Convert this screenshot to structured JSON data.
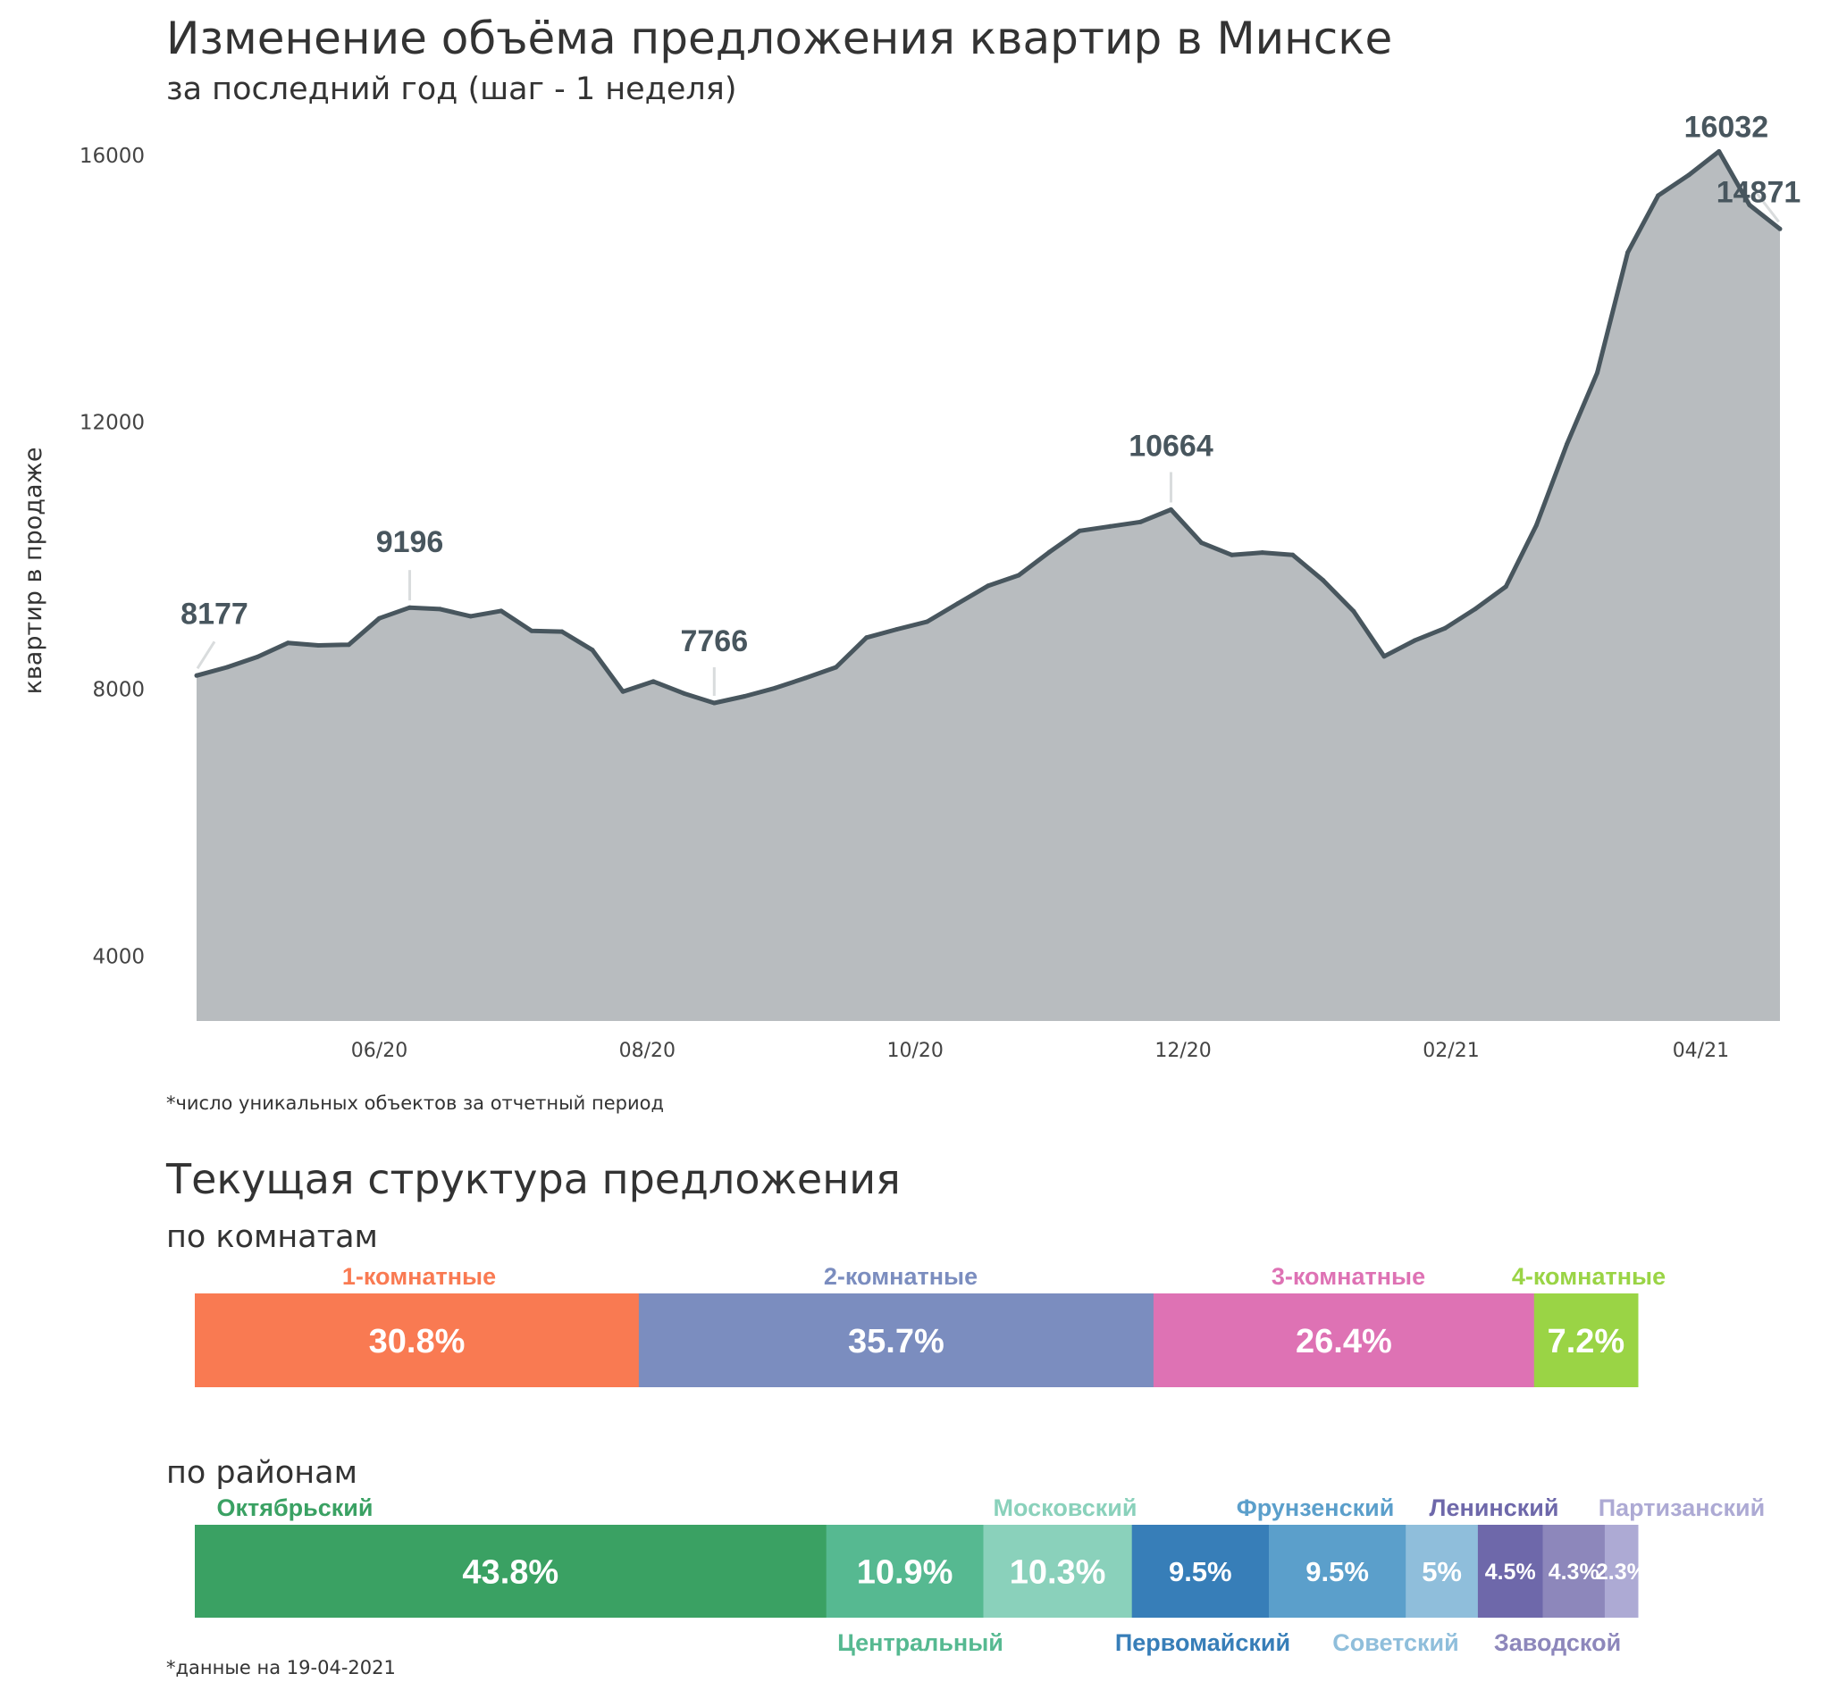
{
  "chart_data": [
    {
      "type": "area",
      "title": "Изменение объёма предложения квартир в Минске",
      "subtitle": "за последний год (шаг - 1 неделя)",
      "xlabel": "",
      "ylabel": "квартир в продаже",
      "ylim": [
        3000,
        16200
      ],
      "grid": false,
      "yticks": [
        {
          "value": 4000,
          "label": "4000"
        },
        {
          "value": 8000,
          "label": "8000"
        },
        {
          "value": 12000,
          "label": "12000"
        },
        {
          "value": 16000,
          "label": "16000"
        }
      ],
      "xticks": [
        {
          "week": 6,
          "label": "06/20"
        },
        {
          "week": 14.8,
          "label": "08/20"
        },
        {
          "week": 23.6,
          "label": "10/20"
        },
        {
          "week": 32.4,
          "label": "12/20"
        },
        {
          "week": 41.2,
          "label": "02/21"
        },
        {
          "week": 49.4,
          "label": "04/21"
        }
      ],
      "values": [
        8177,
        8301,
        8457,
        8666,
        8630,
        8640,
        9035,
        9196,
        9173,
        9066,
        9146,
        8848,
        8835,
        8560,
        7937,
        8088,
        7910,
        7766,
        7866,
        7990,
        8141,
        8301,
        8746,
        8870,
        8986,
        9257,
        9524,
        9680,
        10026,
        10346,
        10413,
        10480,
        10664,
        10168,
        9984,
        10020,
        9984,
        9604,
        9140,
        8465,
        8702,
        8886,
        9177,
        9510,
        10430,
        11643,
        12714,
        14517,
        15371,
        15676,
        16032,
        15230,
        14871
      ],
      "annotations": [
        {
          "week": 0,
          "value": 8177,
          "label": "8177"
        },
        {
          "week": 7,
          "value": 9196,
          "label": "9196"
        },
        {
          "week": 17,
          "value": 7766,
          "label": "7766"
        },
        {
          "week": 32,
          "value": 10664,
          "label": "10664"
        },
        {
          "week": 50,
          "value": 16032,
          "label": "16032"
        },
        {
          "week": 52,
          "value": 14871,
          "label": "14871"
        }
      ],
      "footnote": "*число уникальных объектов за отчетный период",
      "colors": {
        "area": "#B8BCBF",
        "line": "#48565E",
        "leader": "#D9DCDD"
      }
    },
    {
      "type": "bar",
      "stacked": true,
      "title": "Текущая структура предложения",
      "subtitle": "по комнатам",
      "unit": "%",
      "categories": [
        "1-комнатные",
        "2-комнатные",
        "3-комнатные",
        "4-комнатные"
      ],
      "values": [
        30.8,
        35.7,
        26.4,
        7.2
      ],
      "labels": [
        "30.8%",
        "35.7%",
        "26.4%",
        "7.2%"
      ],
      "colors": [
        "#F97A52",
        "#7B8DBF",
        "#DE72B4",
        "#9AD445"
      ]
    },
    {
      "type": "bar",
      "stacked": true,
      "subtitle": "по районам",
      "unit": "%",
      "categories": [
        "Октябрьский",
        "Центральный",
        "Московский",
        "Первомайский",
        "Фрунзенский",
        "Советский",
        "Ленинский",
        "Заводской",
        "Партизанский"
      ],
      "values": [
        43.8,
        10.9,
        10.3,
        9.5,
        9.5,
        5,
        4.5,
        4.3,
        2.3
      ],
      "labels": [
        "43.8%",
        "10.9%",
        "10.3%",
        "9.5%",
        "9.5%",
        "5%",
        "4.5%",
        "4.3%",
        "2.3%"
      ],
      "label_side": [
        "top",
        "bottom",
        "top",
        "bottom",
        "top",
        "bottom",
        "top",
        "bottom",
        "top"
      ],
      "colors": [
        "#3AA163",
        "#56B991",
        "#8AD1BB",
        "#377EB8",
        "#5B9FCB",
        "#8FBEDB",
        "#6E68AA",
        "#8D87BB",
        "#ADAAD4"
      ],
      "footnote": "*данные на 19-04-2021"
    }
  ]
}
